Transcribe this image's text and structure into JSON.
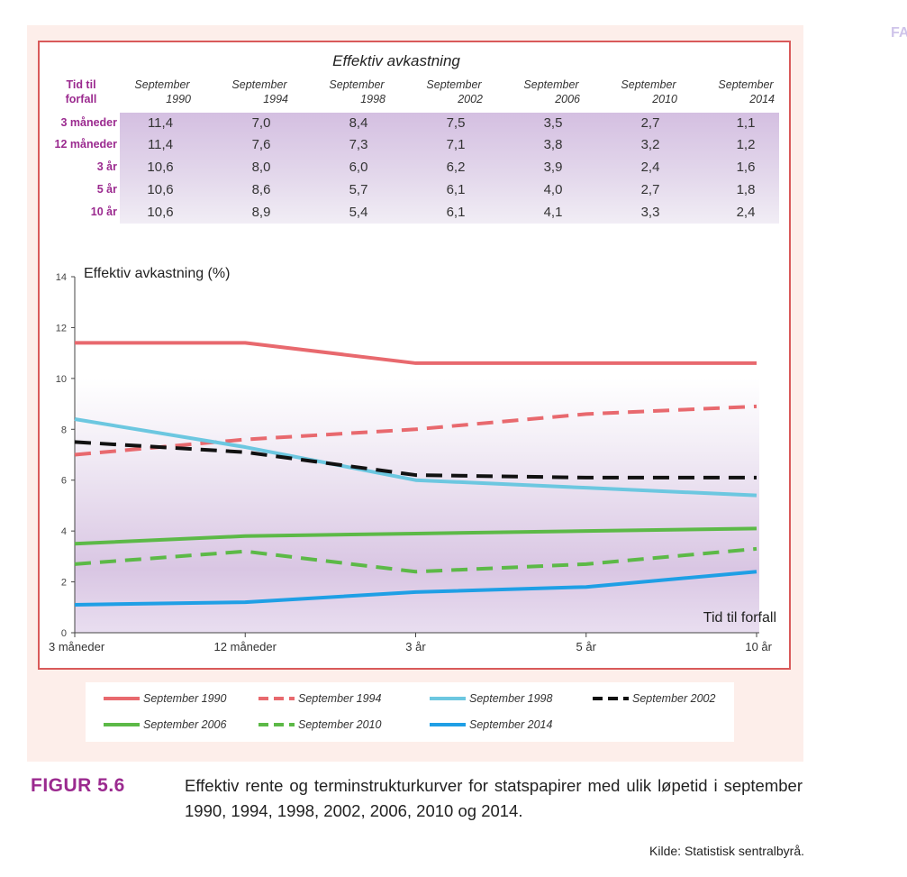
{
  "corner_text": "FA",
  "table": {
    "title": "Effektiv avkastning",
    "header_label": [
      "Tid til",
      "forfall"
    ],
    "columns": [
      {
        "month": "September",
        "year": "1990"
      },
      {
        "month": "September",
        "year": "1994"
      },
      {
        "month": "September",
        "year": "1998"
      },
      {
        "month": "September",
        "year": "2002"
      },
      {
        "month": "September",
        "year": "2006"
      },
      {
        "month": "September",
        "year": "2010"
      },
      {
        "month": "September",
        "year": "2014"
      }
    ],
    "rows": [
      {
        "label": "3 måneder",
        "values": [
          "11,4",
          "7,0",
          "8,4",
          "7,5",
          "3,5",
          "2,7",
          "1,1"
        ]
      },
      {
        "label": "12 måneder",
        "values": [
          "11,4",
          "7,6",
          "7,3",
          "7,1",
          "3,8",
          "3,2",
          "1,2"
        ]
      },
      {
        "label": "3 år",
        "values": [
          "10,6",
          "8,0",
          "6,0",
          "6,2",
          "3,9",
          "2,4",
          "1,6"
        ]
      },
      {
        "label": "5 år",
        "values": [
          "10,6",
          "8,6",
          "5,7",
          "6,1",
          "4,0",
          "2,7",
          "1,8"
        ]
      },
      {
        "label": "10 år",
        "values": [
          "10,6",
          "8,9",
          "5,4",
          "6,1",
          "4,1",
          "3,3",
          "2,4"
        ]
      }
    ]
  },
  "chart_data": {
    "type": "line",
    "ylabel": "Effektiv avkastning (%)",
    "xlabel": "Tid til forfall",
    "categories": [
      "3 måneder",
      "12 måneder",
      "3 år",
      "5 år",
      "10 år"
    ],
    "yticks": [
      0,
      2,
      4,
      6,
      8,
      10,
      12,
      14
    ],
    "ylim": [
      0,
      14
    ],
    "grid": false,
    "legend_position": "bottom",
    "series": [
      {
        "name": "September 1990",
        "values": [
          11.4,
          11.4,
          10.6,
          10.6,
          10.6
        ],
        "color": "#e8696e",
        "style": "solid"
      },
      {
        "name": "September 1994",
        "values": [
          7.0,
          7.6,
          8.0,
          8.6,
          8.9
        ],
        "color": "#e8696e",
        "style": "dashed"
      },
      {
        "name": "September 1998",
        "values": [
          8.4,
          7.3,
          6.0,
          5.7,
          5.4
        ],
        "color": "#6cc7e0",
        "style": "solid"
      },
      {
        "name": "September 2002",
        "values": [
          7.5,
          7.1,
          6.2,
          6.1,
          6.1
        ],
        "color": "#111111",
        "style": "dashed"
      },
      {
        "name": "September 2006",
        "values": [
          3.5,
          3.8,
          3.9,
          4.0,
          4.1
        ],
        "color": "#5cb947",
        "style": "solid"
      },
      {
        "name": "September 2010",
        "values": [
          2.7,
          3.2,
          2.4,
          2.7,
          3.3
        ],
        "color": "#5cb947",
        "style": "dashed"
      },
      {
        "name": "September 2014",
        "values": [
          1.1,
          1.2,
          1.6,
          1.8,
          2.4
        ],
        "color": "#1f9fe5",
        "style": "solid"
      }
    ]
  },
  "figure": {
    "label": "FIGUR 5.6",
    "caption": "Effektiv rente og terminstrukturkurver for statspapirer med ulik løpetid i september 1990, 1994, 1998, 2002, 2006, 2010 og 2014.",
    "source": "Kilde: Statistisk sentralbyrå."
  }
}
